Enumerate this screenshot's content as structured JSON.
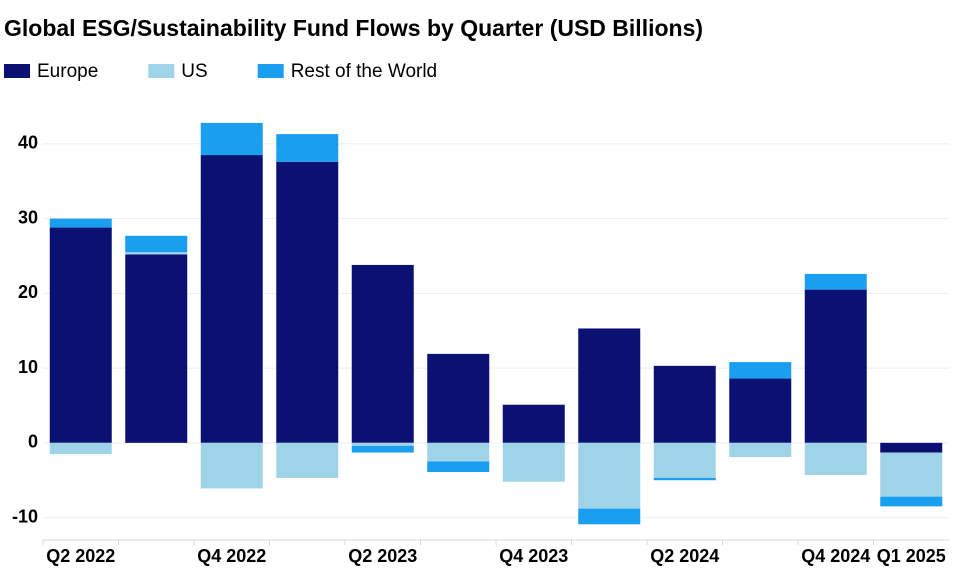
{
  "chart_data": {
    "type": "stacked_bar",
    "title": "Global ESG/Sustainability Fund Flows by Quarter (USD Billions)",
    "categories": [
      "Q2 2022",
      null,
      "Q4 2022",
      null,
      "Q2 2023",
      null,
      "Q4 2023",
      null,
      "Q2 2024",
      null,
      "Q4 2024",
      "Q1 2025"
    ],
    "series": [
      {
        "name": "Europe",
        "color": "#0a1172",
        "values": [
          28.8,
          25.2,
          38.5,
          37.6,
          23.8,
          11.9,
          5.1,
          15.3,
          10.3,
          8.6,
          20.5,
          -1.3
        ]
      },
      {
        "name": "US",
        "color": "#9fd3e8",
        "values": [
          -1.5,
          0.3,
          -6.1,
          -4.7,
          -0.4,
          -2.5,
          -5.2,
          -8.8,
          -4.7,
          -1.9,
          -4.3,
          -5.9
        ]
      },
      {
        "name": "Rest of the World",
        "color": "#1a9ff0",
        "values": [
          1.2,
          2.2,
          4.3,
          3.7,
          -0.9,
          -1.4,
          0,
          -2.1,
          -0.3,
          2.2,
          2.1,
          -1.3
        ]
      }
    ],
    "ylim": [
      -13,
      46
    ],
    "yticks": [
      -10,
      0,
      10,
      20,
      30,
      40
    ],
    "grid": true,
    "legend": "top"
  }
}
